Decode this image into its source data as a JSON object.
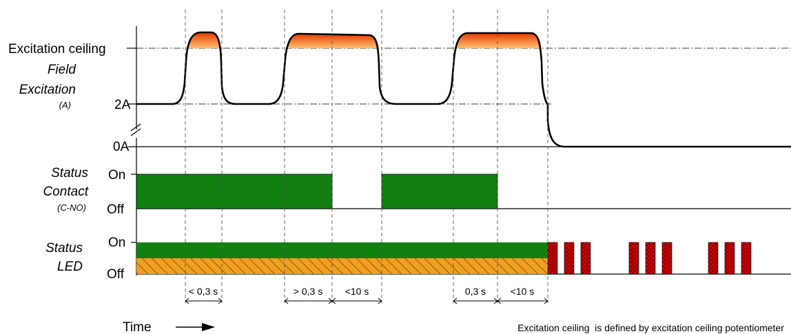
{
  "colors": {
    "contact_on": "#118011",
    "led_on": "#118011",
    "led_off_hatch": "#f0a020",
    "fault_blink": "#dd0000",
    "ceiling_fill_top": "#e63a00",
    "ceiling_fill_bottom": "#ffb060"
  },
  "excitation": {
    "ceiling_label": "Excitation ceiling",
    "title_line1": "Field",
    "title_line2": "Excitation",
    "unit": "(A)",
    "level_2a": "2A",
    "level_0a": "0A"
  },
  "contact": {
    "title_line1": "Status",
    "title_line2": "Contact",
    "subtitle": "(C-NO)",
    "on": "On",
    "off": "Off"
  },
  "led": {
    "title_line1": "Status",
    "title_line2": "LED",
    "on": "On",
    "off": "Off",
    "blink_groups": 3,
    "blinks_per_group": 3
  },
  "durations": [
    "< 0,3 s",
    "> 0,3 s",
    "<10 s",
    "0,3 s",
    "<10 s"
  ],
  "time_label": "Time",
  "footnote": "Excitation ceiling  is defined by excitation ceiling potentiometer"
}
